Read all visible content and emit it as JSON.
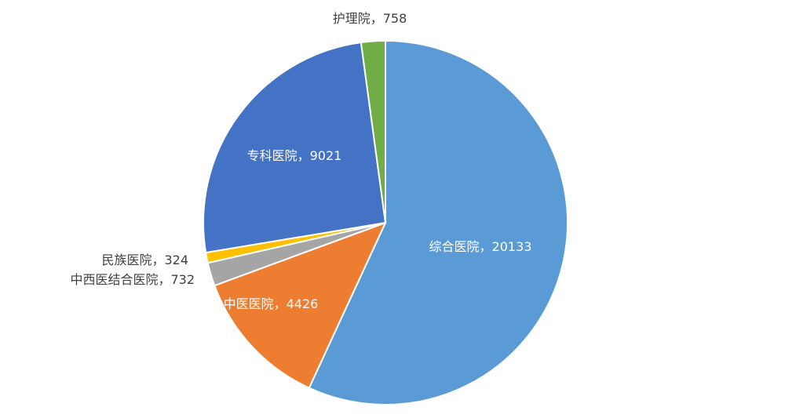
{
  "chart_data": {
    "type": "pie",
    "title": "",
    "start_angle_deg": 0,
    "direction": "clockwise",
    "label_separator": "，",
    "slices": [
      {
        "label": "综合医院",
        "value": 20133,
        "color": "#5B9BD5"
      },
      {
        "label": "中医医院",
        "value": 4426,
        "color": "#ED7D31"
      },
      {
        "label": "中西医结合医院",
        "value": 732,
        "color": "#A5A5A5"
      },
      {
        "label": "民族医院",
        "value": 324,
        "color": "#FFC000"
      },
      {
        "label": "专科医院",
        "value": 9021,
        "color": "#4472C4"
      },
      {
        "label": "护理院",
        "value": 758,
        "color": "#70AD47"
      }
    ],
    "legend": "none",
    "data_labels": "category-and-value"
  }
}
